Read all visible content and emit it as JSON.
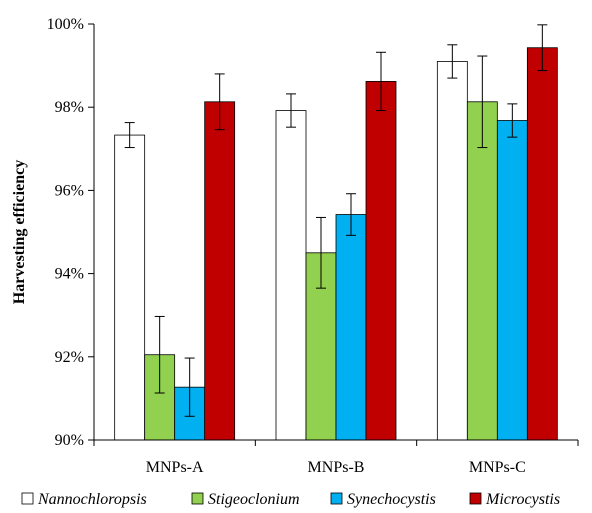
{
  "chart_data": {
    "type": "bar",
    "title": "",
    "xlabel": "",
    "ylabel": "Harvesting efficiency",
    "ylim": [
      90,
      100
    ],
    "yticks": [
      "90%",
      "92%",
      "94%",
      "96%",
      "98%",
      "100%"
    ],
    "ytick_values": [
      90,
      92,
      94,
      96,
      98,
      100
    ],
    "grid": false,
    "legend_position": "bottom",
    "categories": [
      "MNPs-A",
      "MNPs-B",
      "MNPs-C"
    ],
    "series": [
      {
        "name": "Nannochloropsis",
        "color": "#ffffff",
        "values": [
          97.33,
          97.92,
          99.1
        ],
        "errors": [
          0.3,
          0.4,
          0.4
        ]
      },
      {
        "name": "Stigeoclonium",
        "color": "#92d050",
        "values": [
          92.05,
          94.5,
          98.13
        ],
        "errors": [
          0.92,
          0.85,
          1.1
        ]
      },
      {
        "name": "Synechocystis",
        "color": "#00b0f0",
        "values": [
          91.27,
          95.42,
          97.68
        ],
        "errors": [
          0.7,
          0.5,
          0.4
        ]
      },
      {
        "name": "Microcystis",
        "color": "#c00000",
        "values": [
          98.13,
          98.62,
          99.43
        ],
        "errors": [
          0.67,
          0.7,
          0.55
        ]
      }
    ]
  }
}
